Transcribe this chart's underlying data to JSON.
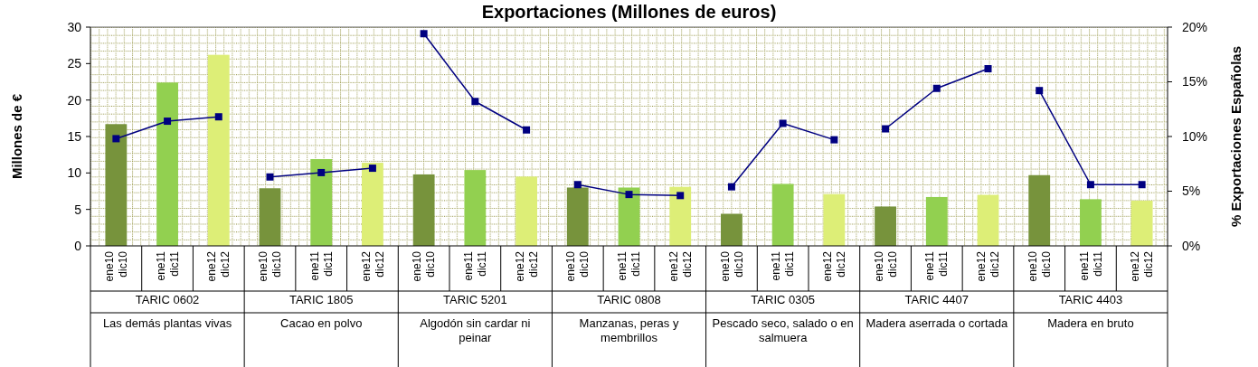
{
  "chart_data": {
    "type": "bar",
    "title": "Exportaciones (Millones de euros)",
    "ylabel": "Millones de €",
    "y2label": "% Exportaciones Españolas",
    "categories": [
      "ene10 dic10",
      "ene11 dic11",
      "ene12 dic12",
      "ene10 dic10",
      "ene11 dic11",
      "ene12 dic12",
      "ene10 dic10",
      "ene11 dic11",
      "ene12 dic12",
      "ene10 dic10",
      "ene11 dic11",
      "ene12 dic12",
      "ene10 dic10",
      "ene11 dic11",
      "ene12 dic12",
      "ene10 dic10",
      "ene11 dic11",
      "ene12 dic12",
      "ene10 dic10",
      "ene11 dic11",
      "ene12 dic12"
    ],
    "annotations": [
      "TARIC 0602",
      "Las demás plantas vivas",
      "TARIC 1805",
      "Cacao en polvo",
      "TARIC 5201",
      "Algodón sin cardar ni peinar",
      "TARIC 0808",
      "Manzanas, peras y membrillos",
      "TARIC 0305",
      "Pescado seco, salado o en salmuera",
      "TARIC 4407",
      "Madera aserrada o cortada",
      "TARIC 4403",
      "Madera en bruto"
    ],
    "series": [
      {
        "colors": [
          "#77933c",
          "#92d050",
          "#ddee77",
          "#77933c",
          "#92d050",
          "#ddee77",
          "#77933c",
          "#92d050",
          "#ddee77",
          "#77933c",
          "#92d050",
          "#ddee77",
          "#77933c",
          "#92d050",
          "#ddee77",
          "#77933c",
          "#92d050",
          "#ddee77",
          "#77933c",
          "#92d050",
          "#ddee77"
        ],
        "values": [
          16.7,
          22.4,
          26.2,
          7.9,
          11.9,
          11.4,
          9.8,
          10.4,
          9.5,
          8.0,
          8.0,
          8.1,
          4.4,
          8.5,
          7.1,
          5.4,
          6.7,
          7.0,
          9.7,
          6.4,
          6.2
        ]
      },
      {
        "type": "line",
        "axis": "y2",
        "color": "#000080",
        "values": [
          9.8,
          11.4,
          11.8,
          null,
          null,
          null,
          null,
          null,
          null,
          null,
          null,
          null,
          null,
          null,
          null,
          null,
          null,
          null,
          null,
          null,
          null
        ]
      },
      {
        "type": "line",
        "axis": "y2",
        "color": "#000080",
        "values": [
          null,
          null,
          null,
          6.3,
          6.7,
          7.1,
          null,
          null,
          null,
          null,
          null,
          null,
          null,
          null,
          null,
          null,
          null,
          null,
          null,
          null,
          null
        ]
      },
      {
        "type": "line",
        "axis": "y2",
        "color": "#000080",
        "values": [
          null,
          null,
          null,
          null,
          null,
          null,
          19.4,
          13.2,
          10.6,
          null,
          null,
          null,
          null,
          null,
          null,
          null,
          null,
          null,
          null,
          null,
          null
        ]
      },
      {
        "type": "line",
        "axis": "y2",
        "color": "#000080",
        "values": [
          null,
          null,
          null,
          null,
          null,
          null,
          null,
          null,
          null,
          5.6,
          4.7,
          4.6,
          null,
          null,
          null,
          null,
          null,
          null,
          null,
          null,
          null
        ]
      },
      {
        "type": "line",
        "axis": "y2",
        "color": "#000080",
        "values": [
          null,
          null,
          null,
          null,
          null,
          null,
          null,
          null,
          null,
          null,
          null,
          null,
          5.4,
          11.2,
          9.7,
          null,
          null,
          null,
          null,
          null,
          null
        ]
      },
      {
        "type": "line",
        "axis": "y2",
        "color": "#000080",
        "values": [
          null,
          null,
          null,
          null,
          null,
          null,
          null,
          null,
          null,
          null,
          null,
          null,
          null,
          null,
          null,
          10.7,
          14.4,
          16.2,
          null,
          null,
          null
        ]
      },
      {
        "type": "line",
        "axis": "y2",
        "color": "#000080",
        "values": [
          null,
          null,
          null,
          null,
          null,
          null,
          null,
          null,
          null,
          null,
          null,
          null,
          null,
          null,
          null,
          null,
          null,
          null,
          14.2,
          5.6,
          5.6
        ]
      }
    ],
    "ylim": [
      0,
      30
    ],
    "yticks": [
      0,
      5,
      10,
      15,
      20,
      25,
      30
    ],
    "y2lim": [
      0,
      20
    ],
    "y2ticks": [
      {
        "value": 0,
        "label": "0%"
      },
      {
        "value": 5,
        "label": "5%"
      },
      {
        "value": 10,
        "label": "10%"
      },
      {
        "value": 15,
        "label": "15%"
      },
      {
        "value": 20,
        "label": "20%"
      }
    ],
    "marker": "square"
  }
}
